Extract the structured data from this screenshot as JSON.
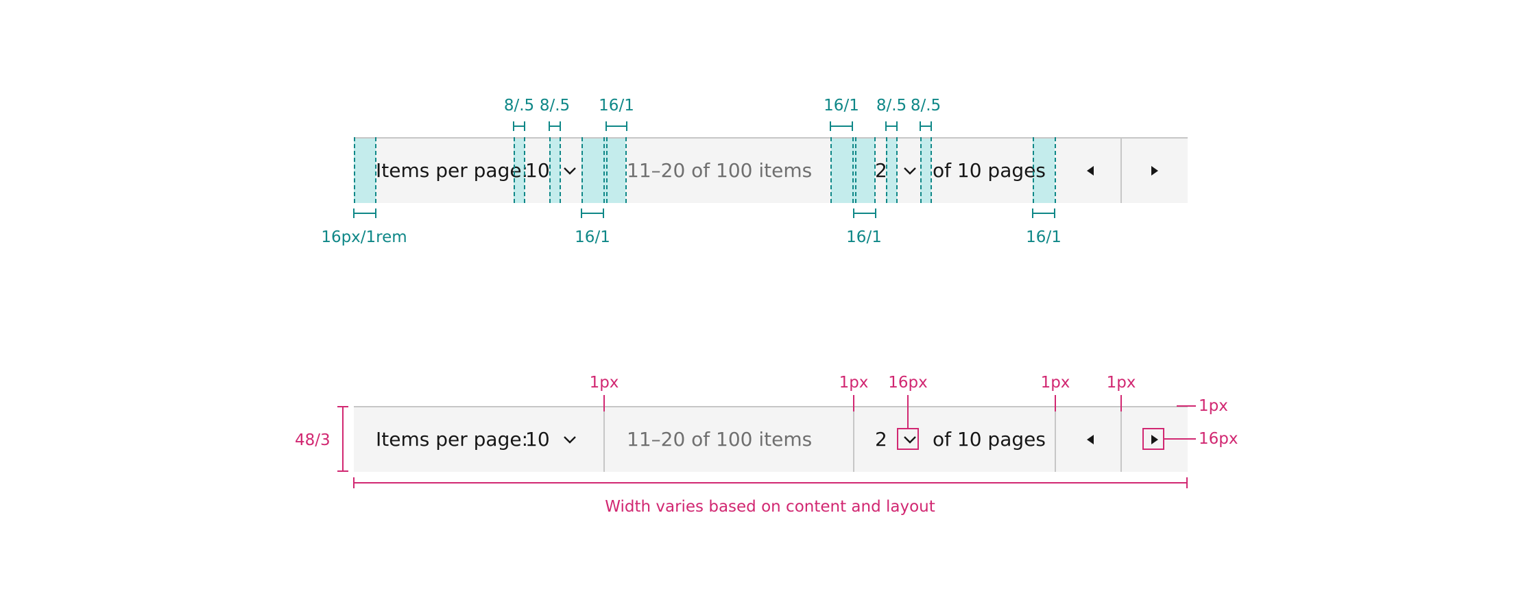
{
  "pagination": {
    "items_per_page_label": "Items per page:",
    "items_per_page_value": "10",
    "range_text": "11–20 of 100 items",
    "page_value": "2",
    "of_pages_text": "of 10 pages"
  },
  "annotations": {
    "spacing": {
      "left_padding": "16px/1rem",
      "select_gap_a": "8/.5",
      "select_gap_b": "8/.5",
      "range_pad_top": "16/1",
      "range_pad_bottom": "16/1",
      "page_pad_top": "16/1",
      "page_gap_a": "8/.5",
      "page_gap_b": "8/.5",
      "page_pad_bottom": "16/1",
      "pages_pad_bottom": "16/1"
    },
    "dimensions": {
      "height": "48/3",
      "divider_1": "1px",
      "divider_2": "1px",
      "chevron_size": "16px",
      "divider_3": "1px",
      "divider_4": "1px",
      "border_top": "1px",
      "icon_size": "16px",
      "width_note": "Width varies based on content and layout"
    }
  },
  "colors": {
    "bar_background": "#f4f4f4",
    "divider": "#c6c6c6",
    "spacing_accent": "#0e8787",
    "spacing_fill": "#9de6e6",
    "dimension_accent": "#d12771",
    "text_primary": "#161616",
    "text_muted": "#6f6f6f"
  },
  "icons": [
    "chevron-down-icon",
    "caret-left-icon",
    "caret-right-icon"
  ]
}
